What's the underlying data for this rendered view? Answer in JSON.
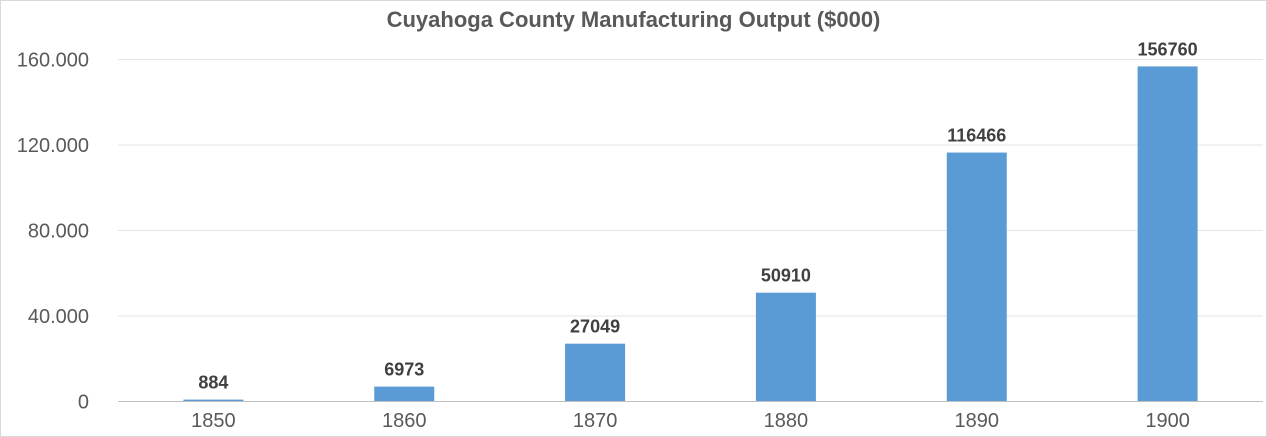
{
  "chart_data": {
    "type": "bar",
    "title": "Cuyahoga County Manufacturing Output ($000)",
    "xlabel": "",
    "ylabel": "",
    "categories": [
      "1850",
      "1860",
      "1870",
      "1880",
      "1890",
      "1900"
    ],
    "values": [
      884,
      6973,
      27049,
      50910,
      116466,
      156760
    ],
    "data_labels": [
      "884",
      "6973",
      "27049",
      "50910",
      "116466",
      "156760"
    ],
    "yticks": [
      0,
      40000,
      80000,
      120000,
      160000
    ],
    "ytick_labels": [
      "0",
      "40.000",
      "80.000",
      "120.000",
      "160.000"
    ],
    "ylim": [
      0,
      160000
    ],
    "grid": true,
    "legend": "none",
    "bar_color": "#5b9bd5",
    "grid_color": "#e6e6e6"
  }
}
